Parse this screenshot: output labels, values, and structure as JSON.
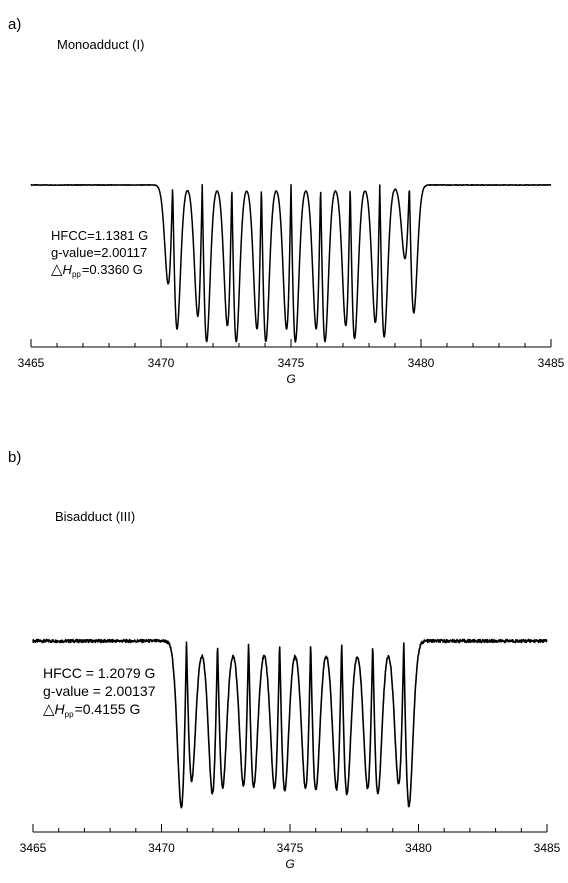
{
  "chart_data": [
    {
      "type": "line",
      "panel_tag": "a)",
      "series_label": "Monoadduct (I)",
      "xlabel": "G",
      "xlim": [
        3465,
        3485
      ],
      "x_ticks": [
        3465,
        3470,
        3475,
        3480,
        3485
      ],
      "x_ticks_labels": [
        "3465",
        "3470",
        "3475",
        "3480",
        "3485"
      ],
      "hfcc": "HFCC=1.1381 G",
      "gvalue": "g-value=2.00117",
      "dh_symbol": "△",
      "dh_H": "H",
      "dh_sub": "pp",
      "dh_value": "=0.3360 G",
      "grid": false,
      "spectrum": {
        "center": 3475.0,
        "hfcc": 1.1381,
        "lines": 9,
        "width": 0.17,
        "peak_height": [
          0.62,
          0.82,
          0.88,
          0.9,
          0.9,
          0.9,
          0.88,
          0.86,
          0.46
        ],
        "trough_depth": [
          -0.9,
          -0.98,
          -0.98,
          -0.98,
          -0.98,
          -0.98,
          -0.96,
          -0.95,
          -0.8
        ]
      },
      "series": [
        {
          "x": [
            3465.0,
            3469.4,
            3469.9,
            3470.1,
            3470.3,
            3470.5,
            3470.8,
            3471.0,
            3471.25,
            3471.5,
            3471.8,
            3472.0,
            3472.2,
            3472.5,
            3472.8,
            3473.1,
            3473.3,
            3473.6,
            3474.0,
            3474.3,
            3474.5,
            3474.8,
            3475.1,
            3475.4,
            3475.7,
            3476.0,
            3476.2,
            3476.5,
            3476.8,
            3477.2,
            3477.4,
            3477.7,
            3478.0,
            3478.3,
            3478.6,
            3478.9,
            3479.2,
            3479.4,
            3479.7,
            3480.1,
            3480.6,
            3481.5,
            3485.0
          ],
          "y": [
            0.0,
            0.03,
            0.13,
            0.15,
            0.2,
            0.18,
            0.62,
            0.95,
            -0.88,
            0.1,
            0.07,
            0.82,
            -0.97,
            0.05,
            0.04,
            0.88,
            -0.97,
            0.05,
            0.04,
            0.9,
            -0.97,
            0.05,
            0.04,
            0.9,
            -0.98,
            0.05,
            0.04,
            0.9,
            -0.98,
            0.05,
            0.04,
            0.88,
            -0.96,
            0.06,
            0.05,
            0.86,
            -0.99,
            -0.22,
            -0.18,
            -0.09,
            -0.03,
            -0.01,
            0.0
          ]
        }
      ]
    },
    {
      "type": "line",
      "panel_tag": "b)",
      "series_label": "Bisadduct (III)",
      "xlabel": "G",
      "xlim": [
        3465,
        3485
      ],
      "x_ticks": [
        3465,
        3470,
        3475,
        3480,
        3485
      ],
      "x_ticks_labels": [
        "3465",
        "3470",
        "3475",
        "3480",
        "3485"
      ],
      "hfcc": "HFCC = 1.2079 G",
      "gvalue": "g-value = 2.00137",
      "dh_symbol": "△",
      "dh_H": "H",
      "dh_sub": "pp",
      "dh_value": "=0.4155 G",
      "grid": false,
      "spectrum": {
        "center": 3475.2,
        "hfcc": 1.2079,
        "lines": 8,
        "width": 0.2,
        "peak_height": [
          0.98,
          0.9,
          0.85,
          0.87,
          0.87,
          0.87,
          0.87,
          0.84
        ],
        "trough_depth": [
          -0.82,
          -0.86,
          -0.86,
          -0.88,
          -0.88,
          -0.9,
          -0.9,
          -0.97
        ]
      },
      "series": [
        {
          "x": [
            3465.0,
            3469.0,
            3469.7,
            3470.2,
            3470.7,
            3470.95,
            3471.3,
            3471.6,
            3471.9,
            3472.15,
            3472.5,
            3472.8,
            3473.1,
            3473.35,
            3473.7,
            3474.0,
            3474.3,
            3474.55,
            3474.9,
            3475.2,
            3475.5,
            3475.75,
            3476.1,
            3476.4,
            3476.7,
            3476.95,
            3477.3,
            3477.6,
            3477.9,
            3478.15,
            3478.5,
            3478.8,
            3479.1,
            3479.35,
            3479.75,
            3480.0,
            3480.5,
            3481.5,
            3482.5,
            3485.0
          ],
          "y": [
            0.0,
            0.03,
            0.12,
            0.35,
            0.75,
            0.98,
            -0.82,
            0.45,
            0.6,
            0.9,
            -0.86,
            0.45,
            0.58,
            0.86,
            -0.87,
            0.45,
            0.58,
            0.87,
            -0.88,
            0.45,
            0.58,
            0.87,
            -0.89,
            0.45,
            0.58,
            0.87,
            -0.9,
            0.45,
            0.58,
            0.87,
            -0.91,
            0.44,
            0.56,
            0.84,
            -0.97,
            -0.22,
            -0.12,
            -0.05,
            -0.01,
            0.0
          ]
        }
      ]
    }
  ]
}
